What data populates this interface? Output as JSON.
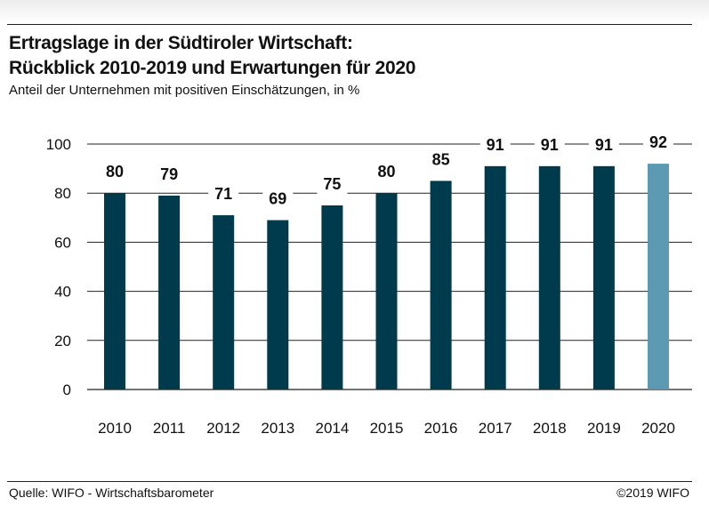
{
  "header": {
    "title_line1": "Ertragslage in der Südtiroler Wirtschaft:",
    "title_line2": "Rückblick 2010-2019 und Erwartungen für 2020",
    "subtitle": "Anteil der Unternehmen mit positiven Einschätzungen, in %"
  },
  "footer": {
    "source": "Quelle: WIFO - Wirtschaftsbarometer",
    "copyright": "©2019 WIFO"
  },
  "colors": {
    "actual_bar": "#003a4d",
    "expectation_bar": "#5b9ab2",
    "gridline": "#222222",
    "text": "#111111"
  },
  "chart_data": {
    "type": "bar",
    "categories": [
      "2010",
      "2011",
      "2012",
      "2013",
      "2014",
      "2015",
      "2016",
      "2017",
      "2018",
      "2019",
      "2020"
    ],
    "values": [
      80,
      79,
      71,
      69,
      75,
      80,
      85,
      91,
      91,
      91,
      92
    ],
    "data_labels": [
      "80",
      "79",
      "71",
      "69",
      "75",
      "80",
      "85",
      "91",
      "91",
      "91",
      "92"
    ],
    "highlight_index": 10,
    "yticks": [
      0,
      20,
      40,
      60,
      80,
      100
    ],
    "ylim": [
      0,
      100
    ],
    "grid": true
  }
}
